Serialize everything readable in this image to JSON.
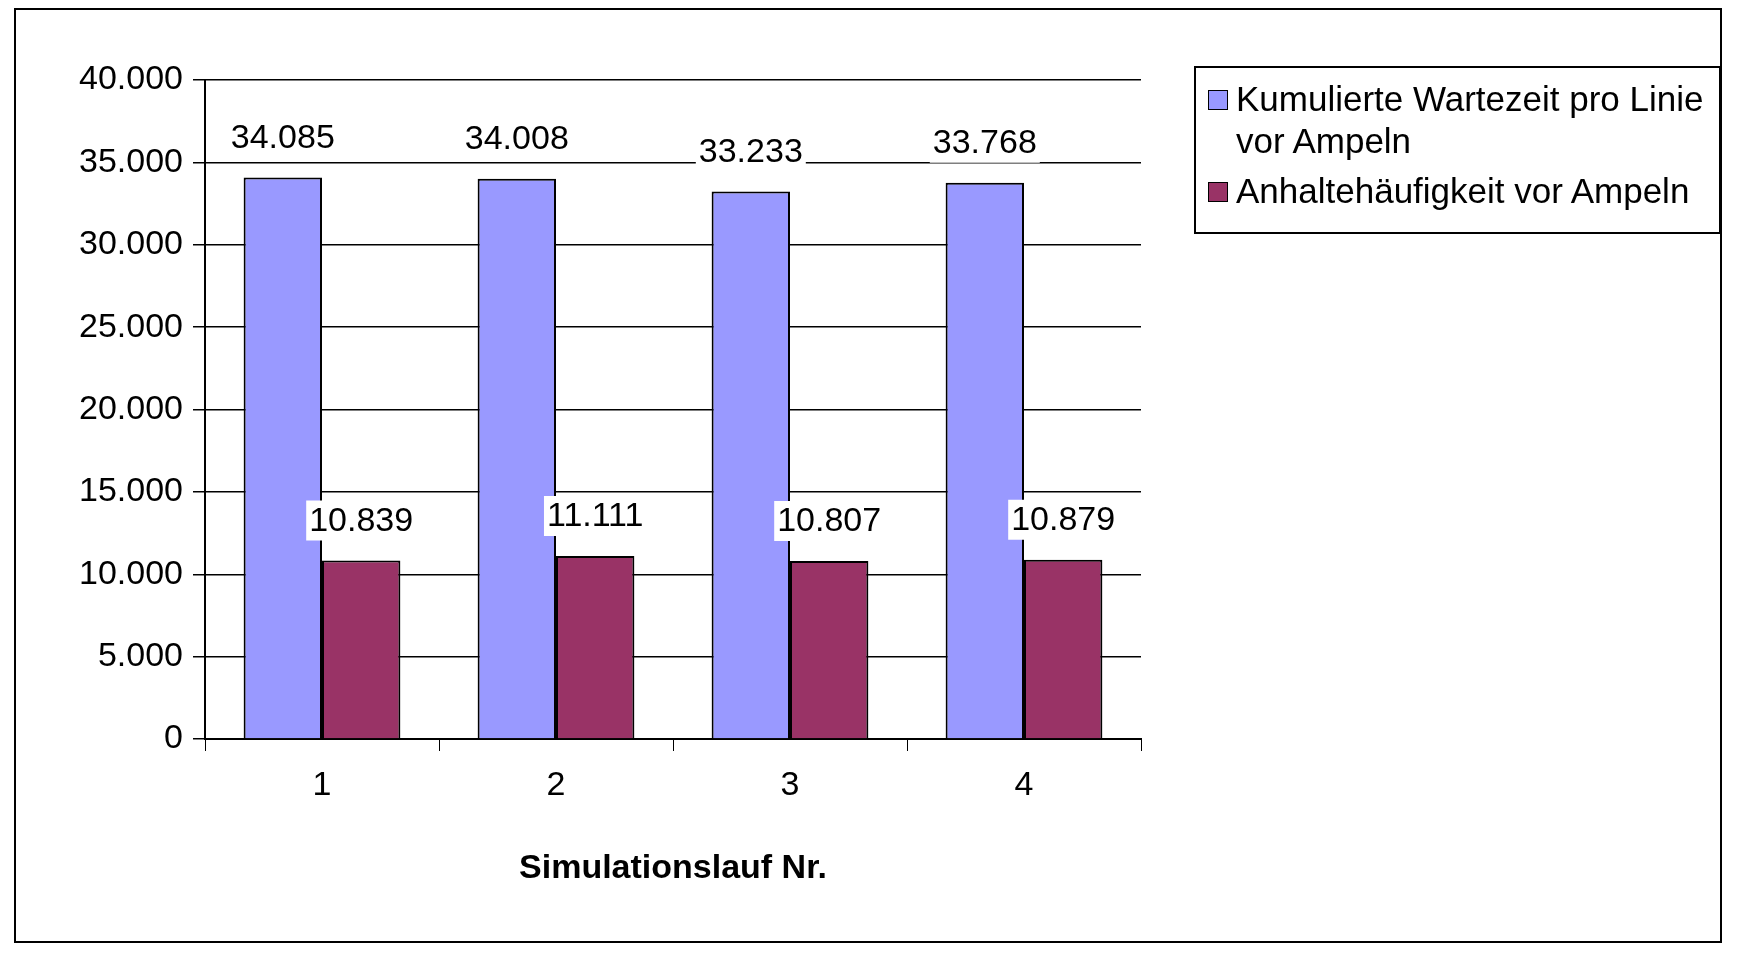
{
  "chart_data": {
    "type": "bar",
    "xlabel": "Simulationslauf Nr.",
    "categories": [
      "1",
      "2",
      "3",
      "4"
    ],
    "series": [
      {
        "name": "Kumulierte Wartezeit pro Linie vor Ampeln",
        "color": "#9999ff",
        "values": [
          34085,
          34008,
          33233,
          33768
        ],
        "value_labels": [
          "34.085",
          "34.008",
          "33.233",
          "33.768"
        ]
      },
      {
        "name": "Anhaltehäufigkeit vor Ampeln",
        "color": "#993366",
        "values": [
          10839,
          11111,
          10807,
          10879
        ],
        "value_labels": [
          "10.839",
          "11.111",
          "10.807",
          "10.879"
        ]
      }
    ],
    "ylim": [
      0,
      40000
    ],
    "yticks": [
      {
        "value": 0,
        "label": "0"
      },
      {
        "value": 5000,
        "label": "5.000"
      },
      {
        "value": 10000,
        "label": "10.000"
      },
      {
        "value": 15000,
        "label": "15.000"
      },
      {
        "value": 20000,
        "label": "20.000"
      },
      {
        "value": 25000,
        "label": "25.000"
      },
      {
        "value": 30000,
        "label": "30.000"
      },
      {
        "value": 35000,
        "label": "35.000"
      },
      {
        "value": 40000,
        "label": "40.000"
      }
    ],
    "grid": "y",
    "legend": "top right"
  }
}
